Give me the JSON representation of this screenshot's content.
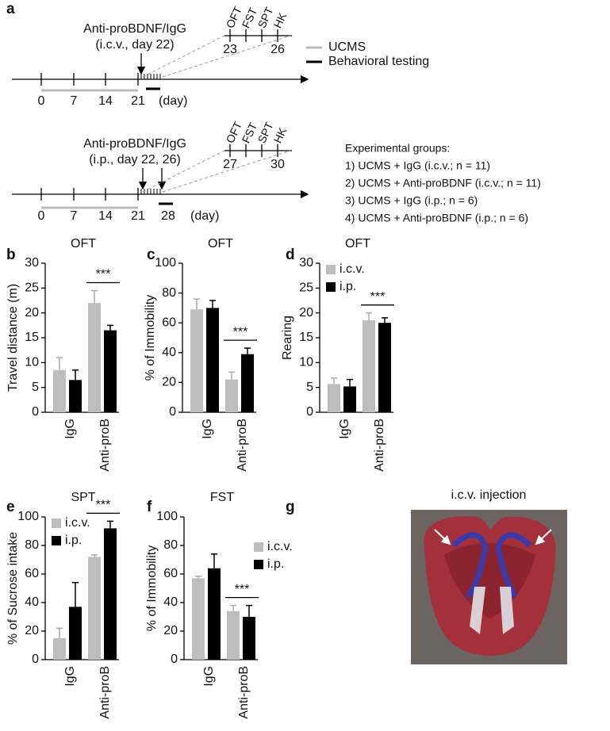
{
  "panel_labels": [
    "a",
    "b",
    "c",
    "d",
    "e",
    "f",
    "g"
  ],
  "timelines": [
    {
      "label": "Anti-proBDNF/IgG",
      "sublabel": "(i.c.v., day 22)",
      "days": [
        "0",
        "7",
        "14",
        "21"
      ],
      "unit": "(day)",
      "tests": [
        "OFT",
        "FST",
        "SPT",
        "HK"
      ],
      "inset_days": [
        "23",
        "26"
      ]
    },
    {
      "label": "Anti-proBDNF/IgG",
      "sublabel": "(i.p., day 22, 26)",
      "days": [
        "0",
        "7",
        "14",
        "21"
      ],
      "end_day": "28",
      "unit": "(day)",
      "tests": [
        "OFT",
        "FST",
        "SPT",
        "HK"
      ],
      "inset_days": [
        "27",
        "30"
      ]
    }
  ],
  "timeline_legend": {
    "ucms": "UCMS",
    "testing": "Behavioral testing"
  },
  "groups": {
    "title": "Experimental groups:",
    "items": [
      "1)  UCMS + IgG (i.c.v.; n = 11)",
      "2)  UCMS + Anti-proBDNF (i.c.v.; n = 11)",
      "3)  UCMS + IgG (i.p.; n = 6)",
      "4)  UCMS + Anti-proBDNF (i.p.; n = 6)"
    ]
  },
  "image_panel": {
    "title": "i.c.v. injection"
  },
  "chart_data": [
    {
      "type": "bar",
      "title": "OFT",
      "ylabel": "Travel distance (m)",
      "categories": [
        "IgG",
        "Anti-proB"
      ],
      "series": [
        {
          "color": "#bdbdbd",
          "values": [
            8.5,
            22
          ],
          "errors": [
            2.5,
            2.5
          ]
        },
        {
          "color": "#000000",
          "values": [
            6.5,
            16.5
          ],
          "errors": [
            2,
            1
          ]
        }
      ],
      "ylim": [
        0,
        30
      ],
      "yticks": [
        0,
        5,
        10,
        15,
        20,
        25,
        30
      ],
      "significance": "***"
    },
    {
      "type": "bar",
      "title": "OFT",
      "ylabel": "% of Immobility",
      "categories": [
        "IgG",
        "Anti-proB"
      ],
      "series": [
        {
          "color": "#bdbdbd",
          "values": [
            69,
            22
          ],
          "errors": [
            7,
            5
          ]
        },
        {
          "color": "#000000",
          "values": [
            70,
            39
          ],
          "errors": [
            5,
            4
          ]
        }
      ],
      "ylim": [
        0,
        100
      ],
      "yticks": [
        0,
        20,
        40,
        60,
        80,
        100
      ],
      "significance": "***"
    },
    {
      "type": "bar",
      "title": "OFT",
      "ylabel": "Rearing",
      "categories": [
        "IgG",
        "Anti-proB"
      ],
      "series": [
        {
          "name": "i.c.v.",
          "color": "#bdbdbd",
          "values": [
            5.7,
            18.5
          ],
          "errors": [
            1.2,
            1.5
          ]
        },
        {
          "name": "i.p.",
          "color": "#000000",
          "values": [
            5.2,
            18
          ],
          "errors": [
            1.4,
            1
          ]
        }
      ],
      "ylim": [
        0,
        30
      ],
      "yticks": [
        0,
        5,
        10,
        15,
        20,
        25,
        30
      ],
      "significance": "***",
      "legend": "upper left"
    },
    {
      "type": "bar",
      "title": "SPT",
      "ylabel": "% of Sucrose intake",
      "categories": [
        "IgG",
        "Anti-proB"
      ],
      "series": [
        {
          "name": "i.c.v.",
          "color": "#bdbdbd",
          "values": [
            15,
            72
          ],
          "errors": [
            7,
            1.5
          ]
        },
        {
          "name": "i.p.",
          "color": "#000000",
          "values": [
            37,
            92
          ],
          "errors": [
            17,
            5
          ]
        }
      ],
      "ylim": [
        0,
        100
      ],
      "yticks": [
        0,
        20,
        40,
        60,
        80,
        100
      ],
      "significance": "***",
      "legend": "upper left"
    },
    {
      "type": "bar",
      "title": "FST",
      "ylabel": "% of Immobility",
      "categories": [
        "IgG",
        "Anti-proB"
      ],
      "series": [
        {
          "name": "i.c.v.",
          "color": "#bdbdbd",
          "values": [
            57,
            34
          ],
          "errors": [
            1.5,
            4
          ]
        },
        {
          "name": "i.p.",
          "color": "#000000",
          "values": [
            64,
            30
          ],
          "errors": [
            10,
            8
          ]
        }
      ],
      "ylim": [
        0,
        100
      ],
      "yticks": [
        0,
        20,
        40,
        60,
        80,
        100
      ],
      "significance": "***",
      "legend": "upper right"
    }
  ]
}
